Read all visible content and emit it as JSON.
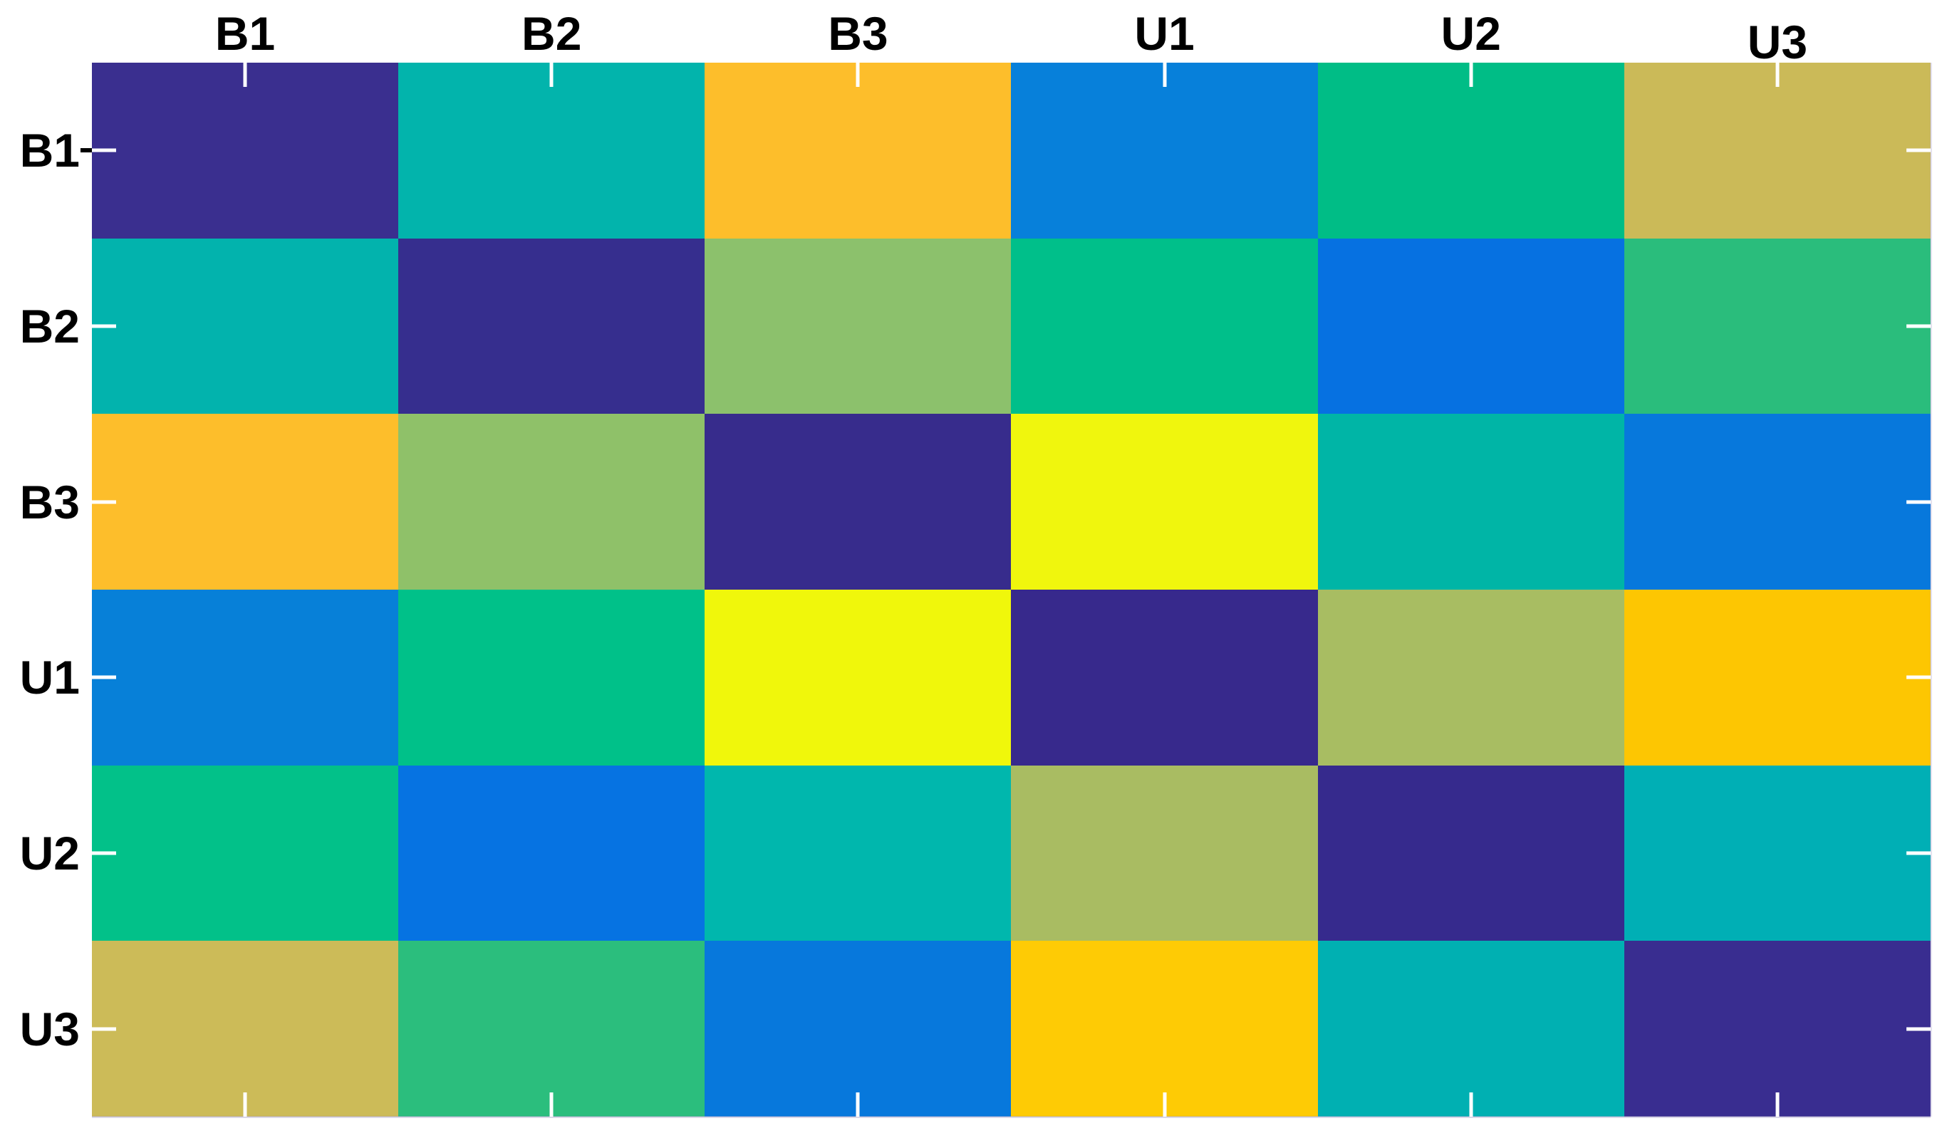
{
  "figure": {
    "background": "#ffffff",
    "tick_color": "#ffffff",
    "label_color": "#000000"
  },
  "chart_data": {
    "type": "heatmap",
    "title": "",
    "xlabel": "",
    "ylabel": "",
    "x_categories": [
      "B1",
      "B2",
      "B3",
      "U1",
      "U2",
      "U3"
    ],
    "y_categories": [
      "B1",
      "B2",
      "B3",
      "U1",
      "U2",
      "U3"
    ],
    "colormap": "parula-like (dark blue = low, yellow = high)",
    "grid": false,
    "legend": "none",
    "cell_colors": [
      [
        "#3A2F8F",
        "#02B4AC",
        "#FDBE2B",
        "#0780DA",
        "#00BD86",
        "#CBBA58"
      ],
      [
        "#02B3AD",
        "#362E8E",
        "#8CC16C",
        "#00BF8A",
        "#0671E1",
        "#2ABD7C"
      ],
      [
        "#FDBE2B",
        "#8FC169",
        "#372C8C",
        "#F0F60D",
        "#00B5A6",
        "#0778DC"
      ],
      [
        "#0780D8",
        "#00C189",
        "#F0F70B",
        "#37298C",
        "#A8BD62",
        "#FDC602"
      ],
      [
        "#02C189",
        "#0673E2",
        "#00B7AD",
        "#A9BC62",
        "#362A8D",
        "#00AFB5"
      ],
      [
        "#CCBB58",
        "#2BBE7D",
        "#0778DC",
        "#FECB05",
        "#00B0B2",
        "#392D90"
      ]
    ],
    "normalized_value_estimates": [
      [
        0.02,
        0.47,
        0.88,
        0.32,
        0.57,
        0.8
      ],
      [
        0.47,
        0.02,
        0.7,
        0.58,
        0.27,
        0.55
      ],
      [
        0.88,
        0.7,
        0.02,
        0.99,
        0.47,
        0.32
      ],
      [
        0.32,
        0.58,
        0.99,
        0.02,
        0.74,
        0.92
      ],
      [
        0.57,
        0.27,
        0.47,
        0.74,
        0.02,
        0.45
      ],
      [
        0.8,
        0.55,
        0.32,
        0.92,
        0.45,
        0.02
      ]
    ]
  }
}
